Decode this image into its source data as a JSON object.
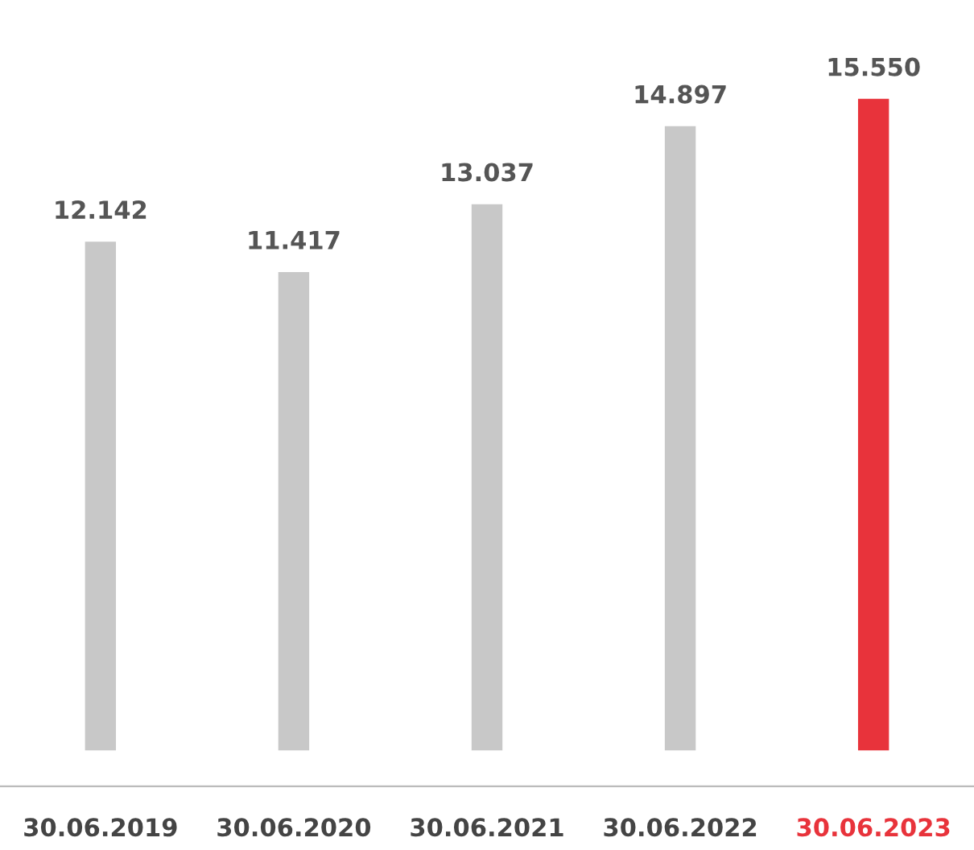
{
  "chart_data": {
    "type": "bar",
    "categories": [
      "30.06.2019",
      "30.06.2020",
      "30.06.2021",
      "30.06.2022",
      "30.06.2023"
    ],
    "values": [
      12.142,
      11.417,
      13.037,
      14.897,
      15.55
    ],
    "value_labels": [
      "12.142",
      "11.417",
      "13.037",
      "14.897",
      "15.550"
    ],
    "colors": [
      "#c8c8c8",
      "#c8c8c8",
      "#c8c8c8",
      "#c8c8c8",
      "#e8333b"
    ],
    "grid": false,
    "legend": false
  }
}
